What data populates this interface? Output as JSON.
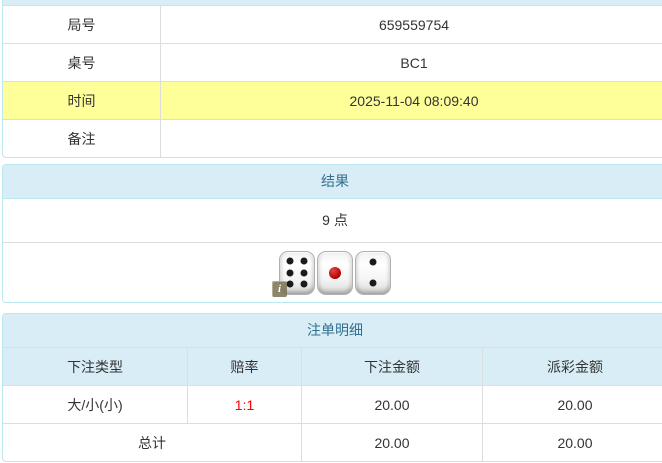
{
  "colors": {
    "panel_heading_bg": "#d9edf7",
    "panel_border": "#bce8f1",
    "heading_text": "#31708f",
    "highlight_row": "#ffff99",
    "odds_red": "#ff0000"
  },
  "game_info": {
    "rows": [
      {
        "label": "局号",
        "value": "659559754",
        "highlight": false
      },
      {
        "label": "桌号",
        "value": "BC1",
        "highlight": false
      },
      {
        "label": "时间",
        "value": "2025-11-04 08:09:40",
        "highlight": true
      },
      {
        "label": "备注",
        "value": "",
        "highlight": false
      }
    ]
  },
  "result": {
    "title": "结果",
    "points": "9 点",
    "dice": [
      6,
      1,
      2
    ],
    "info_badge": "i"
  },
  "bets": {
    "title": "注单明细",
    "columns": [
      "下注类型",
      "赔率",
      "下注金额",
      "派彩金额"
    ],
    "rows": [
      {
        "type": "大/小(小)",
        "odds": "1:1",
        "amount": "20.00",
        "payout": "20.00"
      }
    ],
    "total": {
      "label": "总计",
      "amount": "20.00",
      "payout": "20.00"
    }
  }
}
